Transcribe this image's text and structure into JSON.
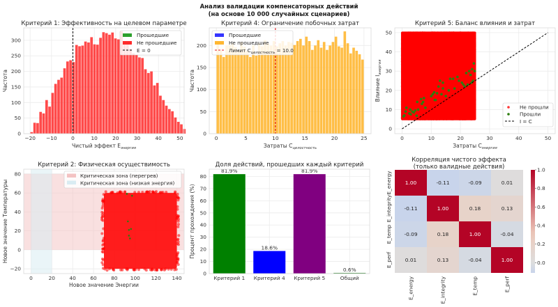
{
  "figure": {
    "title_line1": "Анализ валидации компенсаторных действий",
    "title_line2": "(на основе 10 000 случайных сценариев)"
  },
  "chart_data": [
    {
      "id": "crit1",
      "type": "bar",
      "subtype": "histogram",
      "title": "Критерий 1: Эффективность на целевом параметре",
      "xlabel": "Чистый эффект E",
      "xlabel_sub": "энергия",
      "ylabel": "Частота",
      "xlim": [
        -23,
        52
      ],
      "ylim": [
        0,
        340
      ],
      "xticks": [
        -20,
        -10,
        0,
        10,
        20,
        30,
        40,
        50
      ],
      "yticks": [
        0,
        50,
        100,
        150,
        200,
        250,
        300
      ],
      "grid": true,
      "bin_start": -20,
      "bin_width": 1.4,
      "series": [
        {
          "name": "Прошедшие",
          "color": "#2ca02c",
          "values": []
        },
        {
          "name": "Не прошедшие",
          "color": "#ff2a2a",
          "values": [
            5,
            35,
            34,
            70,
            65,
            108,
            87,
            131,
            160,
            173,
            180,
            210,
            232,
            236,
            230,
            285,
            281,
            283,
            296,
            293,
            310,
            287,
            286,
            308,
            326,
            323,
            318,
            325,
            306,
            303,
            329,
            295,
            288,
            272,
            258,
            253,
            245,
            243,
            207,
            195,
            200,
            155,
            163,
            122,
            108,
            90,
            79,
            72,
            52,
            38,
            30,
            15
          ]
        }
      ],
      "vline": {
        "x": 0,
        "label": "E = 0",
        "color": "#000000"
      },
      "legend": "upper right"
    },
    {
      "id": "crit4",
      "type": "bar",
      "subtype": "histogram",
      "title": "Критерий 4: Ограничение побочных затрат",
      "xlabel": "Затраты C",
      "xlabel_sub": "целостность",
      "ylabel": "Частота",
      "xlim": [
        -1.2,
        26.2
      ],
      "ylim": [
        0,
        240
      ],
      "xticks": [
        0,
        5,
        10,
        15,
        20,
        25
      ],
      "yticks": [
        0,
        50,
        100,
        150,
        200
      ],
      "grid": true,
      "bin_start": 0,
      "bin_width": 0.5,
      "series": [
        {
          "name": "Прошедшие",
          "color": "#3535ff",
          "values": []
        },
        {
          "name": "Не прошедшие",
          "color": "#ffb732",
          "values": [
            203,
            188,
            174,
            200,
            201,
            205,
            196,
            190,
            208,
            197,
            188,
            174,
            201,
            177,
            205,
            198,
            212,
            205,
            200,
            210,
            198,
            205,
            210,
            200,
            208,
            206,
            201,
            210,
            215,
            200,
            220,
            210,
            190,
            200,
            212,
            195,
            208,
            190,
            200,
            208,
            220,
            198,
            195,
            232,
            205,
            182,
            195,
            188,
            180,
            168
          ]
        }
      ],
      "vline": {
        "x": 10.0,
        "label": "Лимит C",
        "label_sub": "целостность",
        "label_suffix": " = 10.0",
        "color": "#e41a1c"
      },
      "legend": "upper left"
    },
    {
      "id": "crit5",
      "type": "scatter",
      "title": "Критерий 5: Баланс влияния и затрат",
      "xlabel": "Затраты C",
      "xlabel_sub": "энергия",
      "ylabel": "Влияние I",
      "ylabel_sub": "энергия",
      "xlim": [
        -2.5,
        52.5
      ],
      "ylim": [
        -2.5,
        52.5
      ],
      "xticks": [
        0,
        10,
        20,
        30,
        40,
        50
      ],
      "yticks": [
        0,
        10,
        20,
        30,
        40,
        50
      ],
      "grid": true,
      "series": [
        {
          "name": "Не прошли",
          "color": "#ff0000",
          "region": {
            "x": [
              0,
              25
            ],
            "y": [
              5,
              50
            ]
          }
        },
        {
          "name": "Прошли",
          "color": "#2e7d0f",
          "points": [
            [
              0.5,
              6.5
            ],
            [
              0.8,
              7
            ],
            [
              1.2,
              9
            ],
            [
              1.5,
              11
            ],
            [
              2.5,
              8
            ],
            [
              2.8,
              10
            ],
            [
              3,
              7.5
            ],
            [
              3.5,
              9
            ],
            [
              4,
              8.5
            ],
            [
              4.5,
              9.5
            ],
            [
              5,
              6.8
            ],
            [
              5.2,
              14
            ],
            [
              5.5,
              10
            ],
            [
              6.5,
              15.5
            ],
            [
              6.8,
              13
            ],
            [
              7.2,
              14
            ],
            [
              7.5,
              16
            ],
            [
              8,
              11
            ],
            [
              10,
              17
            ],
            [
              10.5,
              18
            ],
            [
              11,
              19
            ],
            [
              11.2,
              15
            ],
            [
              12,
              18.5
            ],
            [
              12.5,
              22
            ],
            [
              13.5,
              18
            ],
            [
              14,
              21
            ],
            [
              14,
              24
            ],
            [
              15,
              17
            ],
            [
              16,
              20
            ],
            [
              16.5,
              26
            ],
            [
              17.5,
              26
            ],
            [
              18,
              21
            ],
            [
              19,
              27
            ],
            [
              19.5,
              25
            ],
            [
              20.5,
              24
            ],
            [
              21,
              23
            ],
            [
              21.5,
              22
            ],
            [
              22,
              29
            ],
            [
              22.5,
              23
            ],
            [
              23,
              30
            ],
            [
              23.5,
              28
            ],
            [
              23.8,
              24
            ],
            [
              24,
              31
            ],
            [
              24.3,
              25
            ],
            [
              24.6,
              34
            ],
            [
              24.9,
              30
            ],
            [
              11.5,
              15
            ],
            [
              13,
              25
            ]
          ]
        }
      ],
      "diagonal": {
        "label": "I = C",
        "from": [
          0,
          0
        ],
        "to": [
          50,
          50
        ],
        "color": "#000000"
      },
      "legend": "lower right"
    },
    {
      "id": "crit2",
      "type": "scatter",
      "title": "Критерий 2: Физическая осуществимость",
      "xlabel": "Новое значение Энергии",
      "ylabel": "Новое значение Температуры",
      "xlim": [
        -7,
        147
      ],
      "ylim": [
        -25,
        85
      ],
      "xticks": [
        0,
        20,
        40,
        60,
        80,
        100,
        120,
        140
      ],
      "yticks": [
        -20,
        0,
        20,
        40,
        60,
        80
      ],
      "grid": true,
      "zones": [
        {
          "name": "Критическая зона (перегрев)",
          "color": "#f4c2c2",
          "y": [
            0,
            80
          ]
        },
        {
          "name": "Критическая зона (низкая энергия)",
          "color": "#d9ecf2",
          "x": [
            0,
            20
          ]
        }
      ],
      "series": [
        {
          "name": "Не прошли",
          "color": "#ff0000",
          "region": {
            "x": [
              70,
              140
            ],
            "y": [
              -20,
              60
            ]
          }
        },
        {
          "name": "Прошли",
          "color": "#2e7d0f",
          "points": [
            [
              92,
              59
            ],
            [
              97,
              57
            ],
            [
              94,
              21
            ],
            [
              96,
              22
            ],
            [
              94,
              15
            ],
            [
              95,
              12
            ],
            [
              93,
              30
            ]
          ]
        }
      ],
      "legend": "upper right"
    },
    {
      "id": "pass_rates",
      "type": "bar",
      "title": "Доля действий, прошедших каждый критерий",
      "xlabel": "",
      "ylabel": "Процент прохождения (%)",
      "ylim": [
        0,
        86
      ],
      "yticks": [
        0,
        10,
        20,
        30,
        40,
        50,
        60,
        70,
        80
      ],
      "categories": [
        "Критерий 1",
        "Критерий 4",
        "Критерий 5",
        "Общий"
      ],
      "values": [
        81.9,
        18.6,
        81.9,
        0.6
      ],
      "data_labels": [
        "81.9%",
        "18.6%",
        "81.9%",
        "0.6%"
      ],
      "colors": [
        "#008000",
        "#0000ff",
        "#800080",
        "#3a8a3a"
      ],
      "grid": true
    },
    {
      "id": "corr",
      "type": "heatmap",
      "title_line1": "Корреляция чистого эффекта",
      "title_line2": "(только валидные действия)",
      "rows": [
        "E_energy",
        "E_integrity",
        "E_temp",
        "E_perf"
      ],
      "cols": [
        "E_energy",
        "E_integrity",
        "E_temp",
        "E_perf"
      ],
      "values": [
        [
          1.0,
          -0.11,
          -0.09,
          0.01
        ],
        [
          -0.11,
          1.0,
          0.18,
          0.13
        ],
        [
          -0.09,
          0.18,
          1.0,
          -0.04
        ],
        [
          0.01,
          0.13,
          -0.04,
          1.0
        ]
      ],
      "labels": [
        [
          "1.00",
          "-0.11",
          "-0.09",
          "0.01"
        ],
        [
          "-0.11",
          "1.00",
          "0.18",
          "0.13"
        ],
        [
          "-0.09",
          "0.18",
          "1.00",
          "-0.04"
        ],
        [
          "0.01",
          "0.13",
          "-0.04",
          "1.00"
        ]
      ],
      "colorbar": {
        "range": [
          -0.11,
          1.0
        ],
        "ticks": [
          "1.0",
          "0.8",
          "0.6",
          "0.4",
          "0.2",
          "0.0"
        ],
        "tick_values": [
          1.0,
          0.8,
          0.6,
          0.4,
          0.2,
          0.0
        ],
        "cmap": "coolwarm",
        "center": 0
      }
    }
  ]
}
